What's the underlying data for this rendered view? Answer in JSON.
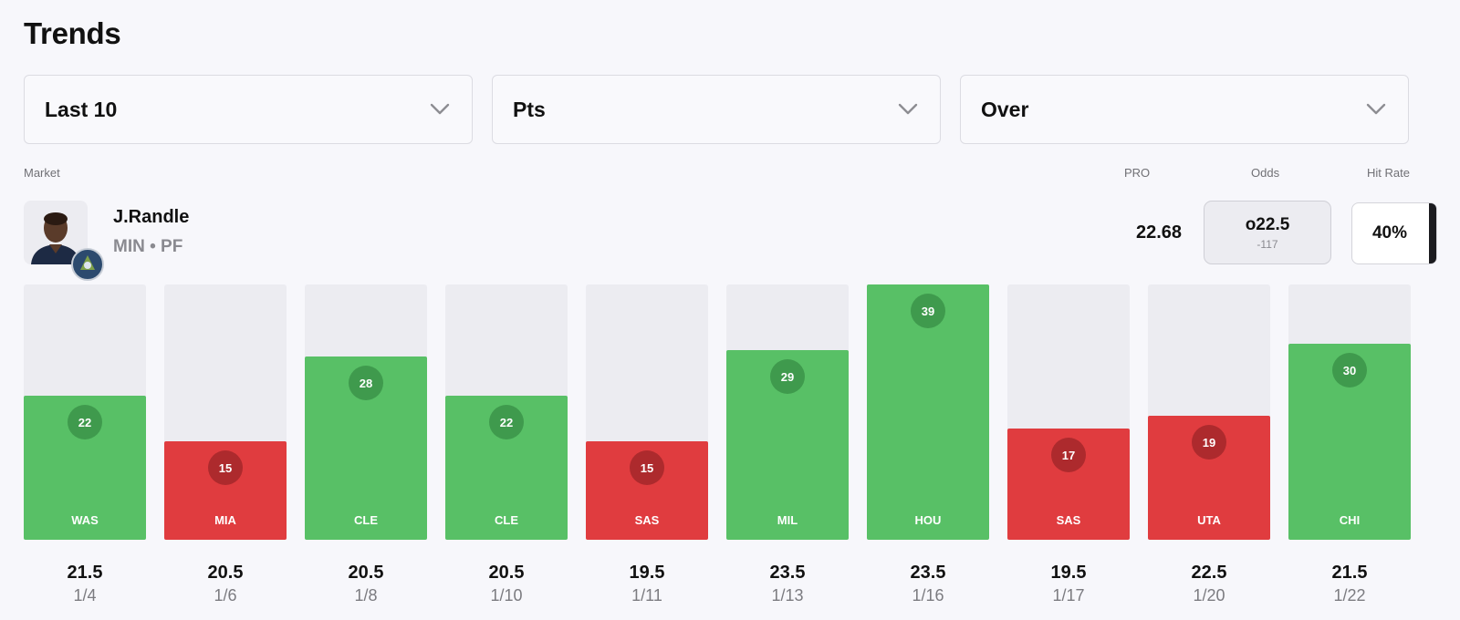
{
  "title": "Trends",
  "filters": [
    {
      "label": "Last 10"
    },
    {
      "label": "Pts"
    },
    {
      "label": "Over"
    }
  ],
  "headers": {
    "market": "Market",
    "pro": "PRO",
    "odds": "Odds",
    "hit_rate": "Hit Rate"
  },
  "player": {
    "name": "J.Randle",
    "team_pos": "MIN • PF"
  },
  "pro_value": "22.68",
  "odds": {
    "line": "o22.5",
    "price": "-117"
  },
  "hit_rate": "40%",
  "colors": {
    "hit": "#58c066",
    "miss": "#e03c3f",
    "track": "#ececf1"
  },
  "chart_data": {
    "type": "bar",
    "y_max": 39,
    "games": [
      {
        "opp": "WAS",
        "pts": 22,
        "line": "21.5",
        "date": "1/4",
        "result": "hit"
      },
      {
        "opp": "MIA",
        "pts": 15,
        "line": "20.5",
        "date": "1/6",
        "result": "miss"
      },
      {
        "opp": "CLE",
        "pts": 28,
        "line": "20.5",
        "date": "1/8",
        "result": "hit"
      },
      {
        "opp": "CLE",
        "pts": 22,
        "line": "20.5",
        "date": "1/10",
        "result": "hit"
      },
      {
        "opp": "SAS",
        "pts": 15,
        "line": "19.5",
        "date": "1/11",
        "result": "miss"
      },
      {
        "opp": "MIL",
        "pts": 29,
        "line": "23.5",
        "date": "1/13",
        "result": "hit"
      },
      {
        "opp": "HOU",
        "pts": 39,
        "line": "23.5",
        "date": "1/16",
        "result": "hit"
      },
      {
        "opp": "SAS",
        "pts": 17,
        "line": "19.5",
        "date": "1/17",
        "result": "miss"
      },
      {
        "opp": "UTA",
        "pts": 19,
        "line": "22.5",
        "date": "1/20",
        "result": "miss"
      },
      {
        "opp": "CHI",
        "pts": 30,
        "line": "21.5",
        "date": "1/22",
        "result": "hit"
      }
    ]
  }
}
